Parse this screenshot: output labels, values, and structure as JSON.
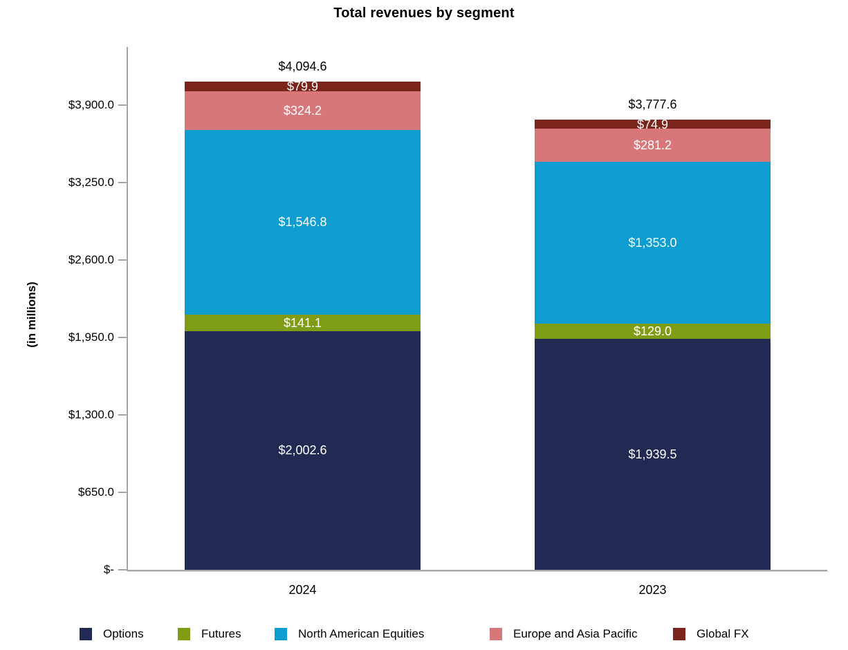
{
  "title": "Total revenues by segment",
  "chart_data": {
    "type": "bar",
    "stacked": true,
    "orientation": "vertical",
    "title": "Total revenues by segment",
    "ylabel": "(in millions)",
    "xlabel": "",
    "categories": [
      "2024",
      "2023"
    ],
    "series": [
      {
        "name": "Options",
        "color": "#212a52",
        "values": [
          2002.6,
          1939.5
        ],
        "labels": [
          "$2,002.6",
          "$1,939.5"
        ]
      },
      {
        "name": "Futures",
        "color": "#7e9d15",
        "values": [
          141.1,
          129.0
        ],
        "labels": [
          "$141.1",
          "$129.0"
        ]
      },
      {
        "name": "North American Equities",
        "color": "#0d9dd1",
        "values": [
          1546.8,
          1353.0
        ],
        "labels": [
          "$1,546.8",
          "$1,353.0"
        ]
      },
      {
        "name": "Europe and Asia Pacific",
        "color": "#d87779",
        "values": [
          324.2,
          281.2
        ],
        "labels": [
          "$324.2",
          "$281.2"
        ]
      },
      {
        "name": "Global FX",
        "color": "#7a241c",
        "values": [
          79.9,
          74.9
        ],
        "labels": [
          "$79.9",
          "$74.9"
        ]
      }
    ],
    "totals": [
      4094.6,
      3777.6
    ],
    "total_labels": [
      "$4,094.6",
      "$3,777.6"
    ],
    "y_ticks": [
      {
        "value": 0,
        "label": "$-"
      },
      {
        "value": 650,
        "label": "$650.0"
      },
      {
        "value": 1300,
        "label": "$1,300.0"
      },
      {
        "value": 1950,
        "label": "$1,950.0"
      },
      {
        "value": 2600,
        "label": "$2,600.0"
      },
      {
        "value": 3250,
        "label": "$3,250.0"
      },
      {
        "value": 3900,
        "label": "$3,900.0"
      }
    ],
    "ylim": [
      0,
      4387.5
    ],
    "grid": false,
    "legend_position": "bottom",
    "value_label_color": "#ffffff",
    "axis_color": "#a6a6a6"
  }
}
